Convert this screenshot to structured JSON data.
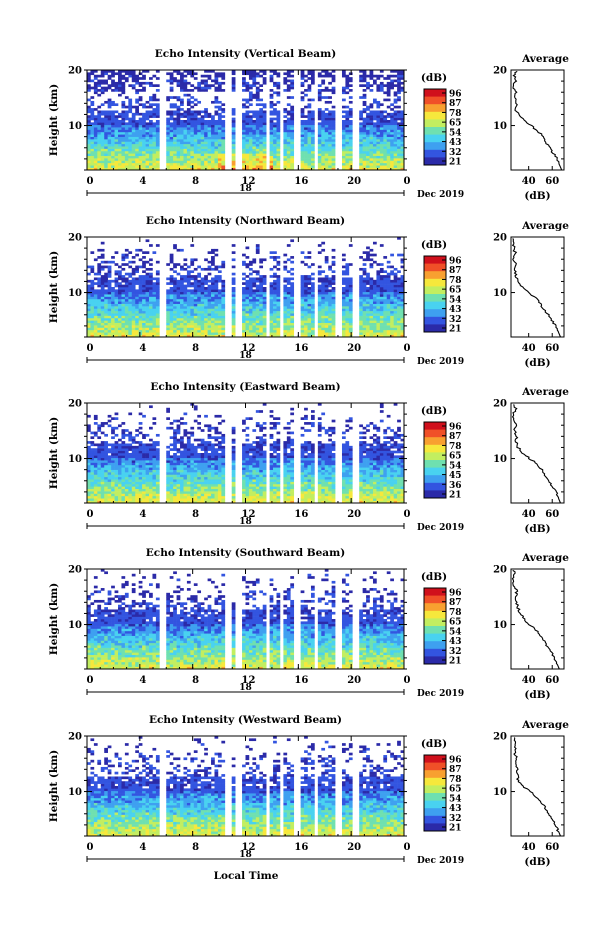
{
  "chart_data": [
    {
      "type": "heatmap",
      "title": "Echo Intensity (Vertical Beam)",
      "ylabel": "Height (km)",
      "ylim": [
        2,
        20
      ],
      "yticks": [
        "20",
        "10"
      ],
      "xticks": [
        "0",
        "4",
        "8",
        "12",
        "16",
        "20",
        "0"
      ],
      "xlim": [
        0,
        24
      ],
      "date_tick": "18",
      "date_label": "Dec 2019",
      "colorbar": {
        "unit": "(dB)",
        "ticks": [
          "96",
          "87",
          "78",
          "65",
          "54",
          "43",
          "32",
          "21"
        ]
      },
      "gaps_hours": [
        [
          5.6,
          6.0
        ],
        [
          10.4,
          11.0
        ],
        [
          11.3,
          11.7
        ],
        [
          13.5,
          13.8
        ],
        [
          14.6,
          14.9
        ],
        [
          15.7,
          16.2
        ],
        [
          17.3,
          17.6
        ],
        [
          18.9,
          19.4
        ],
        [
          20.2,
          20.6
        ]
      ],
      "average": {
        "title": "Average",
        "xlabel": "(dB)",
        "xticks": [
          "40",
          "60"
        ],
        "xlim": [
          25,
          70
        ],
        "ylim": [
          2,
          20
        ],
        "yticks": [
          "20",
          "10"
        ],
        "profile": [
          [
            68,
            2
          ],
          [
            66,
            3
          ],
          [
            64,
            4
          ],
          [
            61,
            5
          ],
          [
            58,
            6
          ],
          [
            55,
            7
          ],
          [
            52,
            8
          ],
          [
            48,
            9
          ],
          [
            42,
            10
          ],
          [
            36,
            11
          ],
          [
            31,
            12
          ],
          [
            29,
            13
          ],
          [
            30,
            14
          ],
          [
            28,
            15
          ],
          [
            30,
            16
          ],
          [
            27,
            17
          ],
          [
            29,
            18
          ],
          [
            28,
            19
          ],
          [
            30,
            20
          ]
        ]
      }
    },
    {
      "type": "heatmap",
      "title": "Echo Intensity (Northward Beam)",
      "ylabel": "Height (km)",
      "ylim": [
        2,
        20
      ],
      "yticks": [
        "20",
        "10"
      ],
      "xticks": [
        "0",
        "4",
        "8",
        "12",
        "16",
        "20",
        "0"
      ],
      "xlim": [
        0,
        24
      ],
      "date_tick": "18",
      "date_label": "Dec 2019",
      "colorbar": {
        "unit": "(dB)",
        "ticks": [
          "96",
          "87",
          "78",
          "65",
          "54",
          "43",
          "32",
          "21"
        ]
      },
      "gaps_hours": [
        [
          5.6,
          6.0
        ],
        [
          10.4,
          11.0
        ],
        [
          11.3,
          11.7
        ],
        [
          13.5,
          13.8
        ],
        [
          14.6,
          14.9
        ],
        [
          15.7,
          16.2
        ],
        [
          17.3,
          17.6
        ],
        [
          18.9,
          19.4
        ],
        [
          20.2,
          20.6
        ]
      ],
      "average": {
        "title": "Average",
        "xlabel": "(dB)",
        "xticks": [
          "40",
          "60"
        ],
        "xlim": [
          25,
          70
        ],
        "ylim": [
          2,
          20
        ],
        "yticks": [
          "20",
          "10"
        ],
        "profile": [
          [
            67,
            2
          ],
          [
            65,
            3
          ],
          [
            63,
            4
          ],
          [
            60,
            5
          ],
          [
            57,
            6
          ],
          [
            53,
            7
          ],
          [
            50,
            8
          ],
          [
            46,
            9
          ],
          [
            40,
            10
          ],
          [
            35,
            11
          ],
          [
            31,
            12
          ],
          [
            29,
            13
          ],
          [
            28,
            14
          ],
          [
            30,
            15
          ],
          [
            27,
            16
          ],
          [
            29,
            17
          ],
          [
            27,
            18
          ],
          [
            28,
            19
          ],
          [
            27,
            20
          ]
        ]
      }
    },
    {
      "type": "heatmap",
      "title": "Echo Intensity (Eastward Beam)",
      "ylabel": "Height (km)",
      "ylim": [
        2,
        20
      ],
      "yticks": [
        "20",
        "10"
      ],
      "xticks": [
        "0",
        "4",
        "8",
        "12",
        "16",
        "20",
        "0"
      ],
      "xlim": [
        0,
        24
      ],
      "date_tick": "18",
      "date_label": "Dec 2019",
      "colorbar": {
        "unit": "(dB)",
        "ticks": [
          "96",
          "87",
          "78",
          "65",
          "54",
          "45",
          "36",
          "21"
        ]
      },
      "gaps_hours": [
        [
          5.6,
          6.0
        ],
        [
          10.4,
          11.0
        ],
        [
          11.3,
          11.7
        ],
        [
          13.5,
          13.8
        ],
        [
          14.6,
          14.9
        ],
        [
          15.7,
          16.2
        ],
        [
          17.3,
          17.6
        ],
        [
          18.9,
          19.4
        ],
        [
          20.2,
          20.6
        ]
      ],
      "average": {
        "title": "Average",
        "xlabel": "(dB)",
        "xticks": [
          "40",
          "60"
        ],
        "xlim": [
          25,
          70
        ],
        "ylim": [
          2,
          20
        ],
        "yticks": [
          "20",
          "10"
        ],
        "profile": [
          [
            67,
            2
          ],
          [
            65,
            3
          ],
          [
            63,
            4
          ],
          [
            60,
            5
          ],
          [
            57,
            6
          ],
          [
            54,
            7
          ],
          [
            51,
            8
          ],
          [
            47,
            9
          ],
          [
            41,
            10
          ],
          [
            35,
            11
          ],
          [
            31,
            12
          ],
          [
            29,
            13
          ],
          [
            30,
            14
          ],
          [
            28,
            15
          ],
          [
            30,
            16
          ],
          [
            28,
            17
          ],
          [
            27,
            18
          ],
          [
            29,
            19
          ],
          [
            28,
            20
          ]
        ]
      }
    },
    {
      "type": "heatmap",
      "title": "Echo Intensity (Southward Beam)",
      "ylabel": "Height (km)",
      "ylim": [
        2,
        20
      ],
      "yticks": [
        "20",
        "10"
      ],
      "xticks": [
        "0",
        "4",
        "8",
        "12",
        "16",
        "20",
        "0"
      ],
      "xlim": [
        0,
        24
      ],
      "date_tick": "18",
      "date_label": "Dec 2019",
      "colorbar": {
        "unit": "(dB)",
        "ticks": [
          "96",
          "87",
          "78",
          "65",
          "54",
          "43",
          "32",
          "21"
        ]
      },
      "gaps_hours": [
        [
          5.6,
          6.0
        ],
        [
          10.4,
          11.0
        ],
        [
          11.3,
          11.7
        ],
        [
          13.5,
          13.8
        ],
        [
          14.6,
          14.9
        ],
        [
          15.7,
          16.2
        ],
        [
          17.3,
          17.6
        ],
        [
          18.9,
          19.4
        ],
        [
          20.2,
          20.6
        ]
      ],
      "average": {
        "title": "Average",
        "xlabel": "(dB)",
        "xticks": [
          "40",
          "60"
        ],
        "xlim": [
          25,
          70
        ],
        "ylim": [
          2,
          20
        ],
        "yticks": [
          "20",
          "10"
        ],
        "profile": [
          [
            66,
            2
          ],
          [
            64,
            3
          ],
          [
            62,
            4
          ],
          [
            59,
            5
          ],
          [
            56,
            6
          ],
          [
            53,
            7
          ],
          [
            50,
            8
          ],
          [
            46,
            9
          ],
          [
            41,
            10
          ],
          [
            36,
            11
          ],
          [
            33,
            12
          ],
          [
            31,
            13
          ],
          [
            30,
            14
          ],
          [
            29,
            15
          ],
          [
            30,
            16
          ],
          [
            28,
            17
          ],
          [
            27,
            18
          ],
          [
            28,
            19
          ],
          [
            27,
            20
          ]
        ]
      }
    },
    {
      "type": "heatmap",
      "title": "Echo Intensity (Westward Beam)",
      "ylabel": "Height (km)",
      "ylim": [
        2,
        20
      ],
      "yticks": [
        "20",
        "10"
      ],
      "xticks": [
        "0",
        "4",
        "8",
        "12",
        "16",
        "20",
        "0"
      ],
      "xlim": [
        0,
        24
      ],
      "date_tick": "18",
      "date_label": "Dec 2019",
      "colorbar": {
        "unit": "(dB)",
        "ticks": [
          "96",
          "87",
          "78",
          "65",
          "54",
          "43",
          "32",
          "21"
        ]
      },
      "gaps_hours": [
        [
          5.6,
          6.0
        ],
        [
          10.4,
          11.0
        ],
        [
          11.3,
          11.7
        ],
        [
          13.5,
          13.8
        ],
        [
          14.6,
          14.9
        ],
        [
          15.7,
          16.2
        ],
        [
          17.3,
          17.6
        ],
        [
          18.9,
          19.4
        ],
        [
          20.2,
          20.6
        ]
      ],
      "average": {
        "title": "Average",
        "xlabel": "(dB)",
        "xticks": [
          "40",
          "60"
        ],
        "xlim": [
          25,
          70
        ],
        "ylim": [
          2,
          20
        ],
        "yticks": [
          "20",
          "10"
        ],
        "profile": [
          [
            67,
            2
          ],
          [
            65,
            3
          ],
          [
            63,
            4
          ],
          [
            60,
            5
          ],
          [
            57,
            6
          ],
          [
            54,
            7
          ],
          [
            51,
            8
          ],
          [
            47,
            9
          ],
          [
            41,
            10
          ],
          [
            35,
            11
          ],
          [
            31,
            12
          ],
          [
            30,
            13
          ],
          [
            31,
            14
          ],
          [
            29,
            15
          ],
          [
            30,
            16
          ],
          [
            28,
            17
          ],
          [
            29,
            18
          ],
          [
            28,
            19
          ],
          [
            27,
            20
          ]
        ]
      }
    }
  ],
  "footer": {
    "xlabel": "Local Time"
  },
  "colormap": [
    "#2b2aa8",
    "#3355e0",
    "#3ea0f0",
    "#49d2f0",
    "#6fe0b0",
    "#c2ee60",
    "#f6e83c",
    "#f8a030",
    "#f05028",
    "#d0101c"
  ]
}
